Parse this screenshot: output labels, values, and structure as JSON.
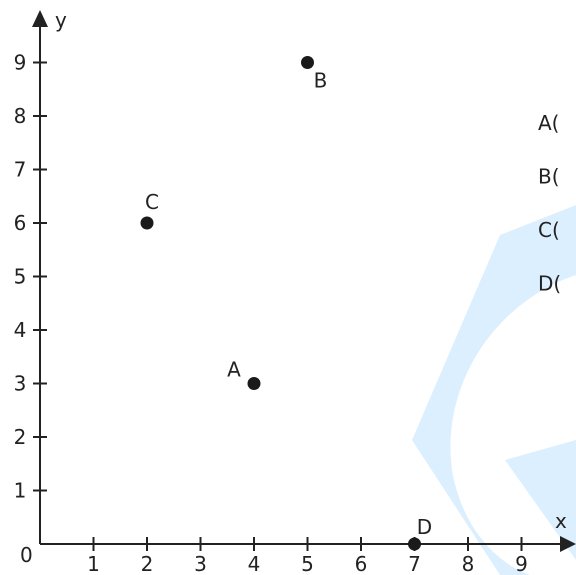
{
  "chart_data": {
    "type": "scatter",
    "xlabel": "x",
    "ylabel": "y",
    "origin_label": "0",
    "xlim": [
      0,
      10
    ],
    "ylim": [
      0,
      9.8
    ],
    "x_ticks": [
      1,
      2,
      3,
      4,
      5,
      6,
      7,
      8,
      9
    ],
    "y_ticks": [
      1,
      2,
      3,
      4,
      5,
      6,
      7,
      8,
      9
    ],
    "grid": false,
    "points": [
      {
        "label": "A",
        "x": 4,
        "y": 3,
        "label_pos": "upper-left"
      },
      {
        "label": "B",
        "x": 5,
        "y": 9,
        "label_pos": "lower-right"
      },
      {
        "label": "C",
        "x": 2,
        "y": 6,
        "label_pos": "above"
      },
      {
        "label": "D",
        "x": 7,
        "y": 0,
        "label_pos": "upper-right"
      }
    ]
  },
  "prompts": [
    "A(",
    "B(",
    "C(",
    "D("
  ],
  "colors": {
    "axis": "#222222",
    "point": "#1a1a1a",
    "watermark": "#dcefff"
  }
}
